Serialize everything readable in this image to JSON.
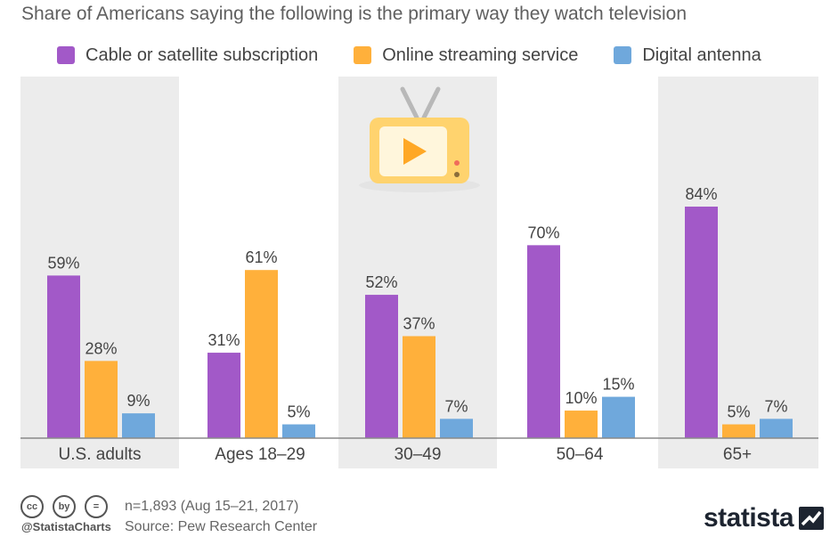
{
  "header": {
    "subtitle": "Share of Americans saying the following is the primary way they watch television"
  },
  "chart_data": {
    "type": "bar",
    "title": "",
    "subtitle": "Share of Americans saying the following is the primary way they watch television",
    "xlabel": "",
    "ylabel": "",
    "ylim": [
      0,
      100
    ],
    "grid": false,
    "legend_position": "top",
    "categories": [
      "U.S. adults",
      "Ages 18–29",
      "30–49",
      "50–64",
      "65+"
    ],
    "series": [
      {
        "name": "Cable or satellite subscription",
        "color": "#a259c8",
        "values": [
          59,
          31,
          52,
          70,
          84
        ],
        "labels": [
          "59%",
          "31%",
          "52%",
          "70%",
          "84%"
        ]
      },
      {
        "name": "Online streaming service",
        "color": "#ffb03b",
        "values": [
          28,
          61,
          37,
          10,
          5
        ],
        "labels": [
          "28%",
          "61%",
          "37%",
          "10%",
          "5%"
        ]
      },
      {
        "name": "Digital antenna",
        "color": "#6fa8dc",
        "values": [
          9,
          5,
          7,
          15,
          7
        ],
        "labels": [
          "9%",
          "5%",
          "7%",
          "15%",
          "7%"
        ]
      }
    ]
  },
  "colors": {
    "band": "#ececec",
    "axis": "#8a8a8a",
    "tv_body": "#ffd36e",
    "tv_screen": "#fff6dc",
    "tv_play": "#ffa826",
    "tv_antenna": "#b8b8b8",
    "tv_shadow": "#e4e4e4"
  },
  "footer": {
    "cc_icons": [
      "cc",
      "by",
      "="
    ],
    "handle": "@StatistaCharts",
    "note": "n=1,893 (Aug 15–21, 2017)",
    "source": "Source: Pew Research Center",
    "brand": "statista"
  }
}
